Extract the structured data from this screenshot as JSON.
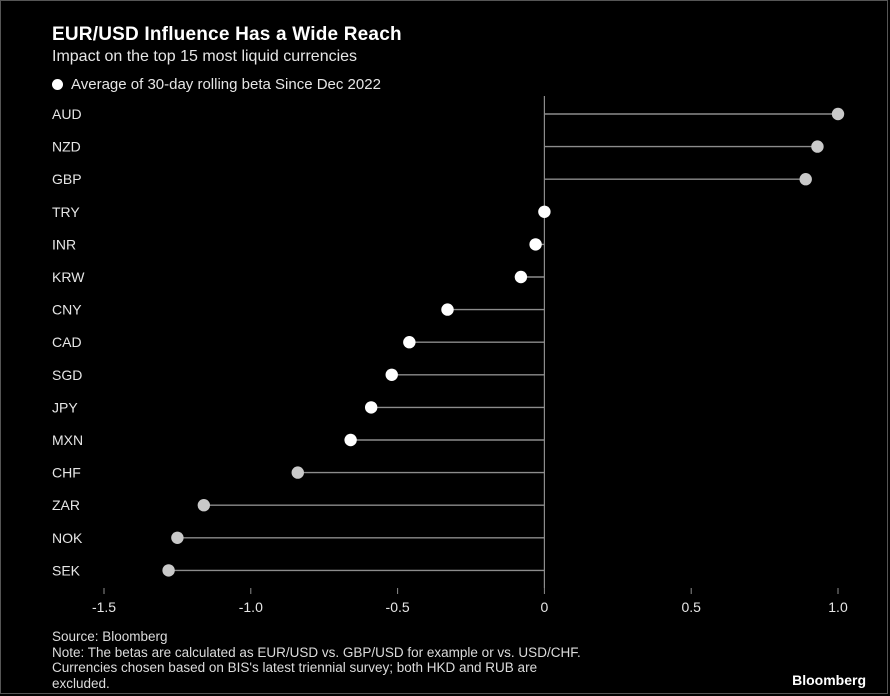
{
  "header": {
    "title": "EUR/USD Influence Has a Wide Reach",
    "subtitle": "Impact on the top 15 most liquid currencies",
    "legend": "Average of 30-day rolling beta Since Dec 2022"
  },
  "chart_data": {
    "type": "lollipop",
    "categories": [
      "AUD",
      "NZD",
      "GBP",
      "TRY",
      "INR",
      "KRW",
      "CNY",
      "CAD",
      "SGD",
      "JPY",
      "MXN",
      "CHF",
      "ZAR",
      "NOK",
      "SEK"
    ],
    "values": [
      1.0,
      0.93,
      0.89,
      0.0,
      -0.03,
      -0.08,
      -0.33,
      -0.46,
      -0.52,
      -0.59,
      -0.66,
      -0.84,
      -1.16,
      -1.25,
      -1.28
    ],
    "dot_colors": [
      "#c9c9c9",
      "#c9c9c9",
      "#c9c9c9",
      "#ffffff",
      "#ffffff",
      "#ffffff",
      "#ffffff",
      "#ffffff",
      "#ffffff",
      "#ffffff",
      "#ffffff",
      "#c9c9c9",
      "#c9c9c9",
      "#c9c9c9",
      "#c9c9c9"
    ],
    "series_name": "Average of 30-day rolling beta Since Dec 2022",
    "xlim": [
      -1.5,
      1.0
    ],
    "xticks": [
      -1.5,
      -1.0,
      -0.5,
      0,
      0.5,
      1.0
    ],
    "xtick_labels": [
      "-1.5",
      "-1.0",
      "-0.5",
      "0",
      "0.5",
      "1.0"
    ],
    "grid": false,
    "legend_position": "top-left"
  },
  "footer": {
    "source": "Source: Bloomberg",
    "note1": "Note: The betas are calculated as EUR/USD vs. GBP/USD for example or vs. USD/CHF.",
    "note2": "Currencies chosen based on BIS's latest triennial survey; both HKD and RUB are",
    "note3": "excluded.",
    "brand": "Bloomberg"
  },
  "colors": {
    "background": "#000000",
    "line": "#8c8c8c",
    "dot_highlight": "#ffffff",
    "dot_default": "#c9c9c9"
  }
}
